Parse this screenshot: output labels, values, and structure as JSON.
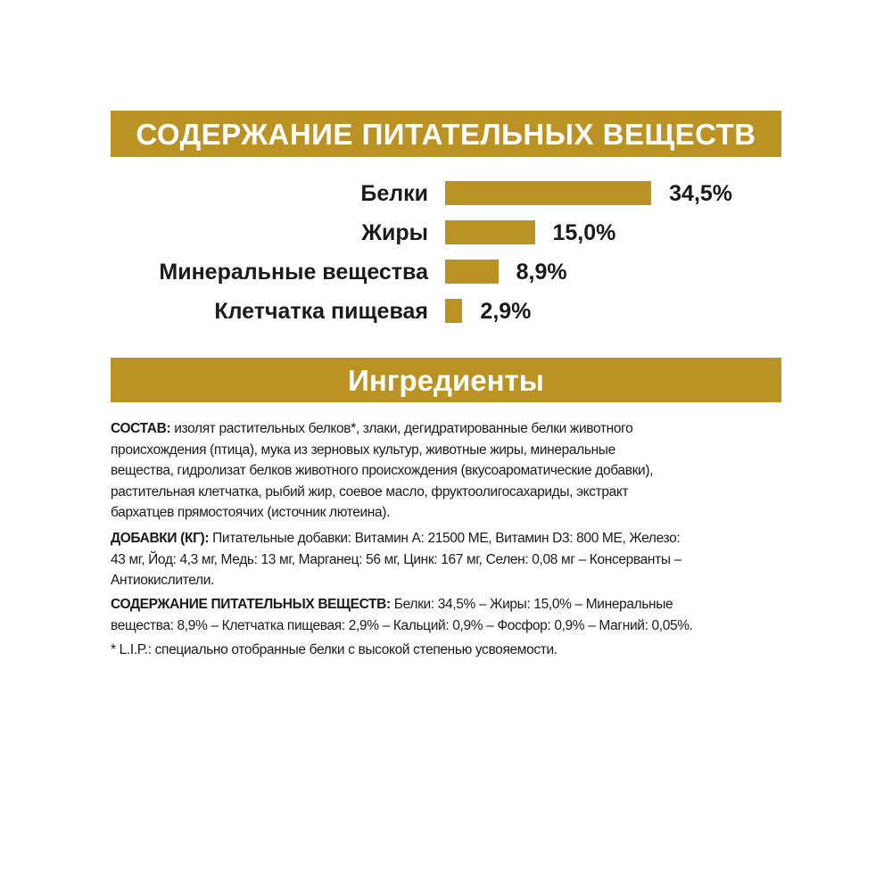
{
  "header": {
    "title": "СОДЕРЖАНИЕ ПИТАТЕЛЬНЫХ ВЕЩЕСТВ"
  },
  "chart_data": {
    "type": "bar",
    "orientation": "horizontal",
    "categories": [
      "Белки",
      "Жиры",
      "Минеральные вещества",
      "Клетчатка пищевая"
    ],
    "values": [
      34.5,
      15.0,
      8.9,
      2.9
    ],
    "value_labels": [
      "34,5%",
      "15,0%",
      "8,9%",
      "2,9%"
    ],
    "unit": "%",
    "bar_color": "#bb9324",
    "grid": false
  },
  "ingredients": {
    "title": "Ингредиенты",
    "composition": {
      "label": "СОСТАВ:",
      "lines": [
        " изолят растительных белков*, злаки, дегидратированные белки животного",
        "происхождения (птица), мука из зерновых культур, животные жиры, минеральные",
        "вещества, гидролизат белков животного происхождения (вкусоароматические добавки),",
        "растительная клетчатка, рыбий жир, соевое масло, фруктоолигосахариды, экстракт",
        "бархатцев прямостоячих (источник лютеина)."
      ]
    },
    "additives": {
      "label": "ДОБАВКИ (КГ):",
      "lines": [
        " Питательные добавки: Витамин А: 21500 МЕ, Витамин D3: 800 МЕ, Железо:",
        "43 мг, Йод: 4,3 мг, Медь: 13 мг, Марганец: 56 мг, Цинк: 167 мг, Селен: 0,08 мг – Консерванты –",
        "Антиокислители."
      ]
    },
    "nutrients": {
      "label": "СОДЕРЖАНИЕ ПИТАТЕЛЬНЫХ ВЕЩЕСТВ:",
      "lines": [
        " Белки: 34,5% – Жиры: 15,0% – Минеральные",
        "вещества: 8,9% – Клетчатка пищевая: 2,9% – Кальций: 0,9% – Фосфор: 0,9% – Магний: 0,05%."
      ]
    },
    "footnote": "* L.I.P.: специально отобранные белки с высокой степенью усвояемости."
  },
  "colors": {
    "accent": "#bb9324",
    "text": "#1a1a1a"
  }
}
